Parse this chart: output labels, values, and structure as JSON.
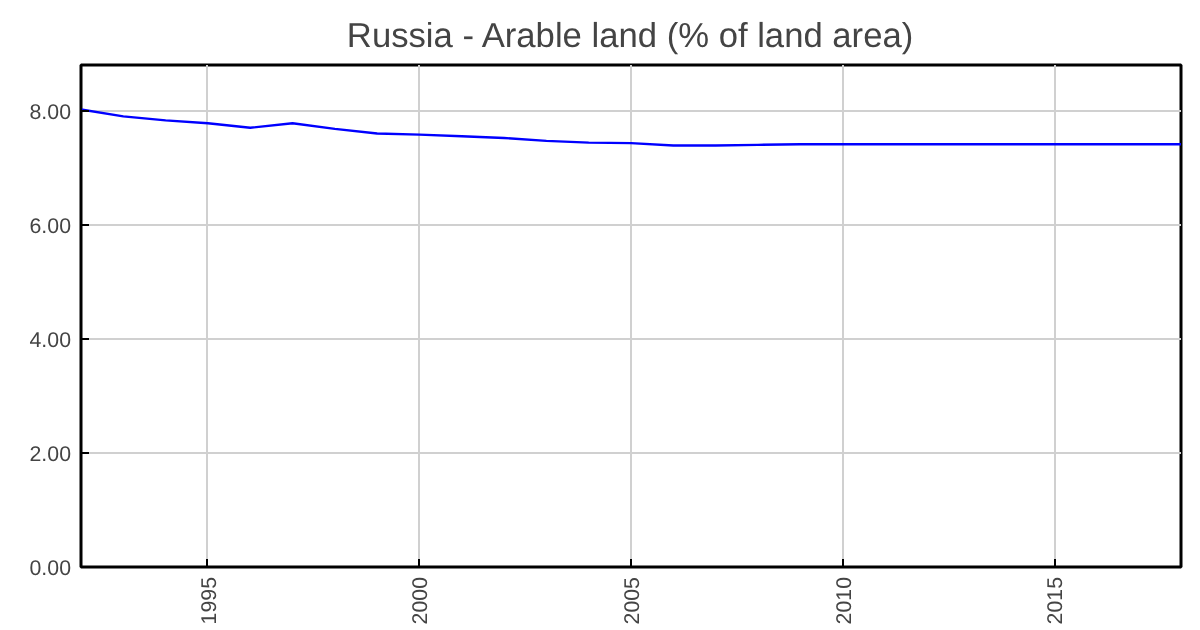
{
  "chart_data": {
    "type": "line",
    "title": "Russia - Arable land (% of land area)",
    "x": [
      1992,
      1993,
      1994,
      1995,
      1996,
      1997,
      1998,
      1999,
      2000,
      2001,
      2002,
      2003,
      2004,
      2005,
      2006,
      2007,
      2008,
      2009,
      2010,
      2011,
      2012,
      2013,
      2014,
      2015,
      2016,
      2017,
      2018
    ],
    "series": [
      {
        "color": "#0000ff",
        "values": [
          8.02,
          7.9,
          7.83,
          7.78,
          7.7,
          7.78,
          7.68,
          7.6,
          7.58,
          7.55,
          7.52,
          7.47,
          7.44,
          7.43,
          7.39,
          7.39,
          7.4,
          7.41,
          7.41,
          7.41,
          7.41,
          7.41,
          7.41,
          7.41,
          7.41,
          7.41,
          7.41
        ]
      }
    ],
    "xlim": [
      1992,
      2018
    ],
    "ylim": [
      0,
      8.8
    ],
    "xticks": [
      1995,
      2000,
      2005,
      2010,
      2015
    ],
    "yticks": [
      {
        "value": 0,
        "label": "0.00"
      },
      {
        "value": 2,
        "label": "2.00"
      },
      {
        "value": 4,
        "label": "4.00"
      },
      {
        "value": 6,
        "label": "6.00"
      },
      {
        "value": 8,
        "label": "8.00"
      }
    ],
    "grid": true,
    "marker": "none",
    "line_style": "solid"
  }
}
